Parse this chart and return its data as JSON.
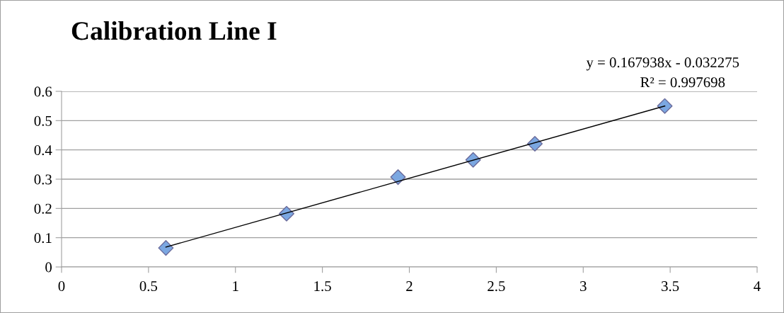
{
  "chart_data": {
    "type": "scatter",
    "title": "Calibration Line I",
    "annotations": [
      "y = 0.167938x - 0.032275",
      "R² = 0.997698"
    ],
    "series": [
      {
        "color": "#7ba7e1",
        "x": [
          0.6,
          1.294,
          1.935,
          2.367,
          2.722,
          3.469
        ],
        "values": [
          0.065,
          0.182,
          0.307,
          0.366,
          0.421,
          0.55
        ],
        "marker": "diamond"
      },
      {
        "type": "line",
        "color": "#000000",
        "x": [
          0.6,
          3.469
        ],
        "values": [
          0.068,
          0.55
        ],
        "marker": "none",
        "line_style": "solid"
      }
    ],
    "xlim": [
      0,
      4
    ],
    "xticks": [
      0,
      0.5,
      1,
      1.5,
      2,
      2.5,
      3,
      3.5,
      4
    ],
    "ylim": [
      0,
      0.6
    ],
    "yticks": [
      0,
      0.1,
      0.2,
      0.3,
      0.4,
      0.5,
      0.6
    ],
    "grid": "y",
    "legend": false
  }
}
